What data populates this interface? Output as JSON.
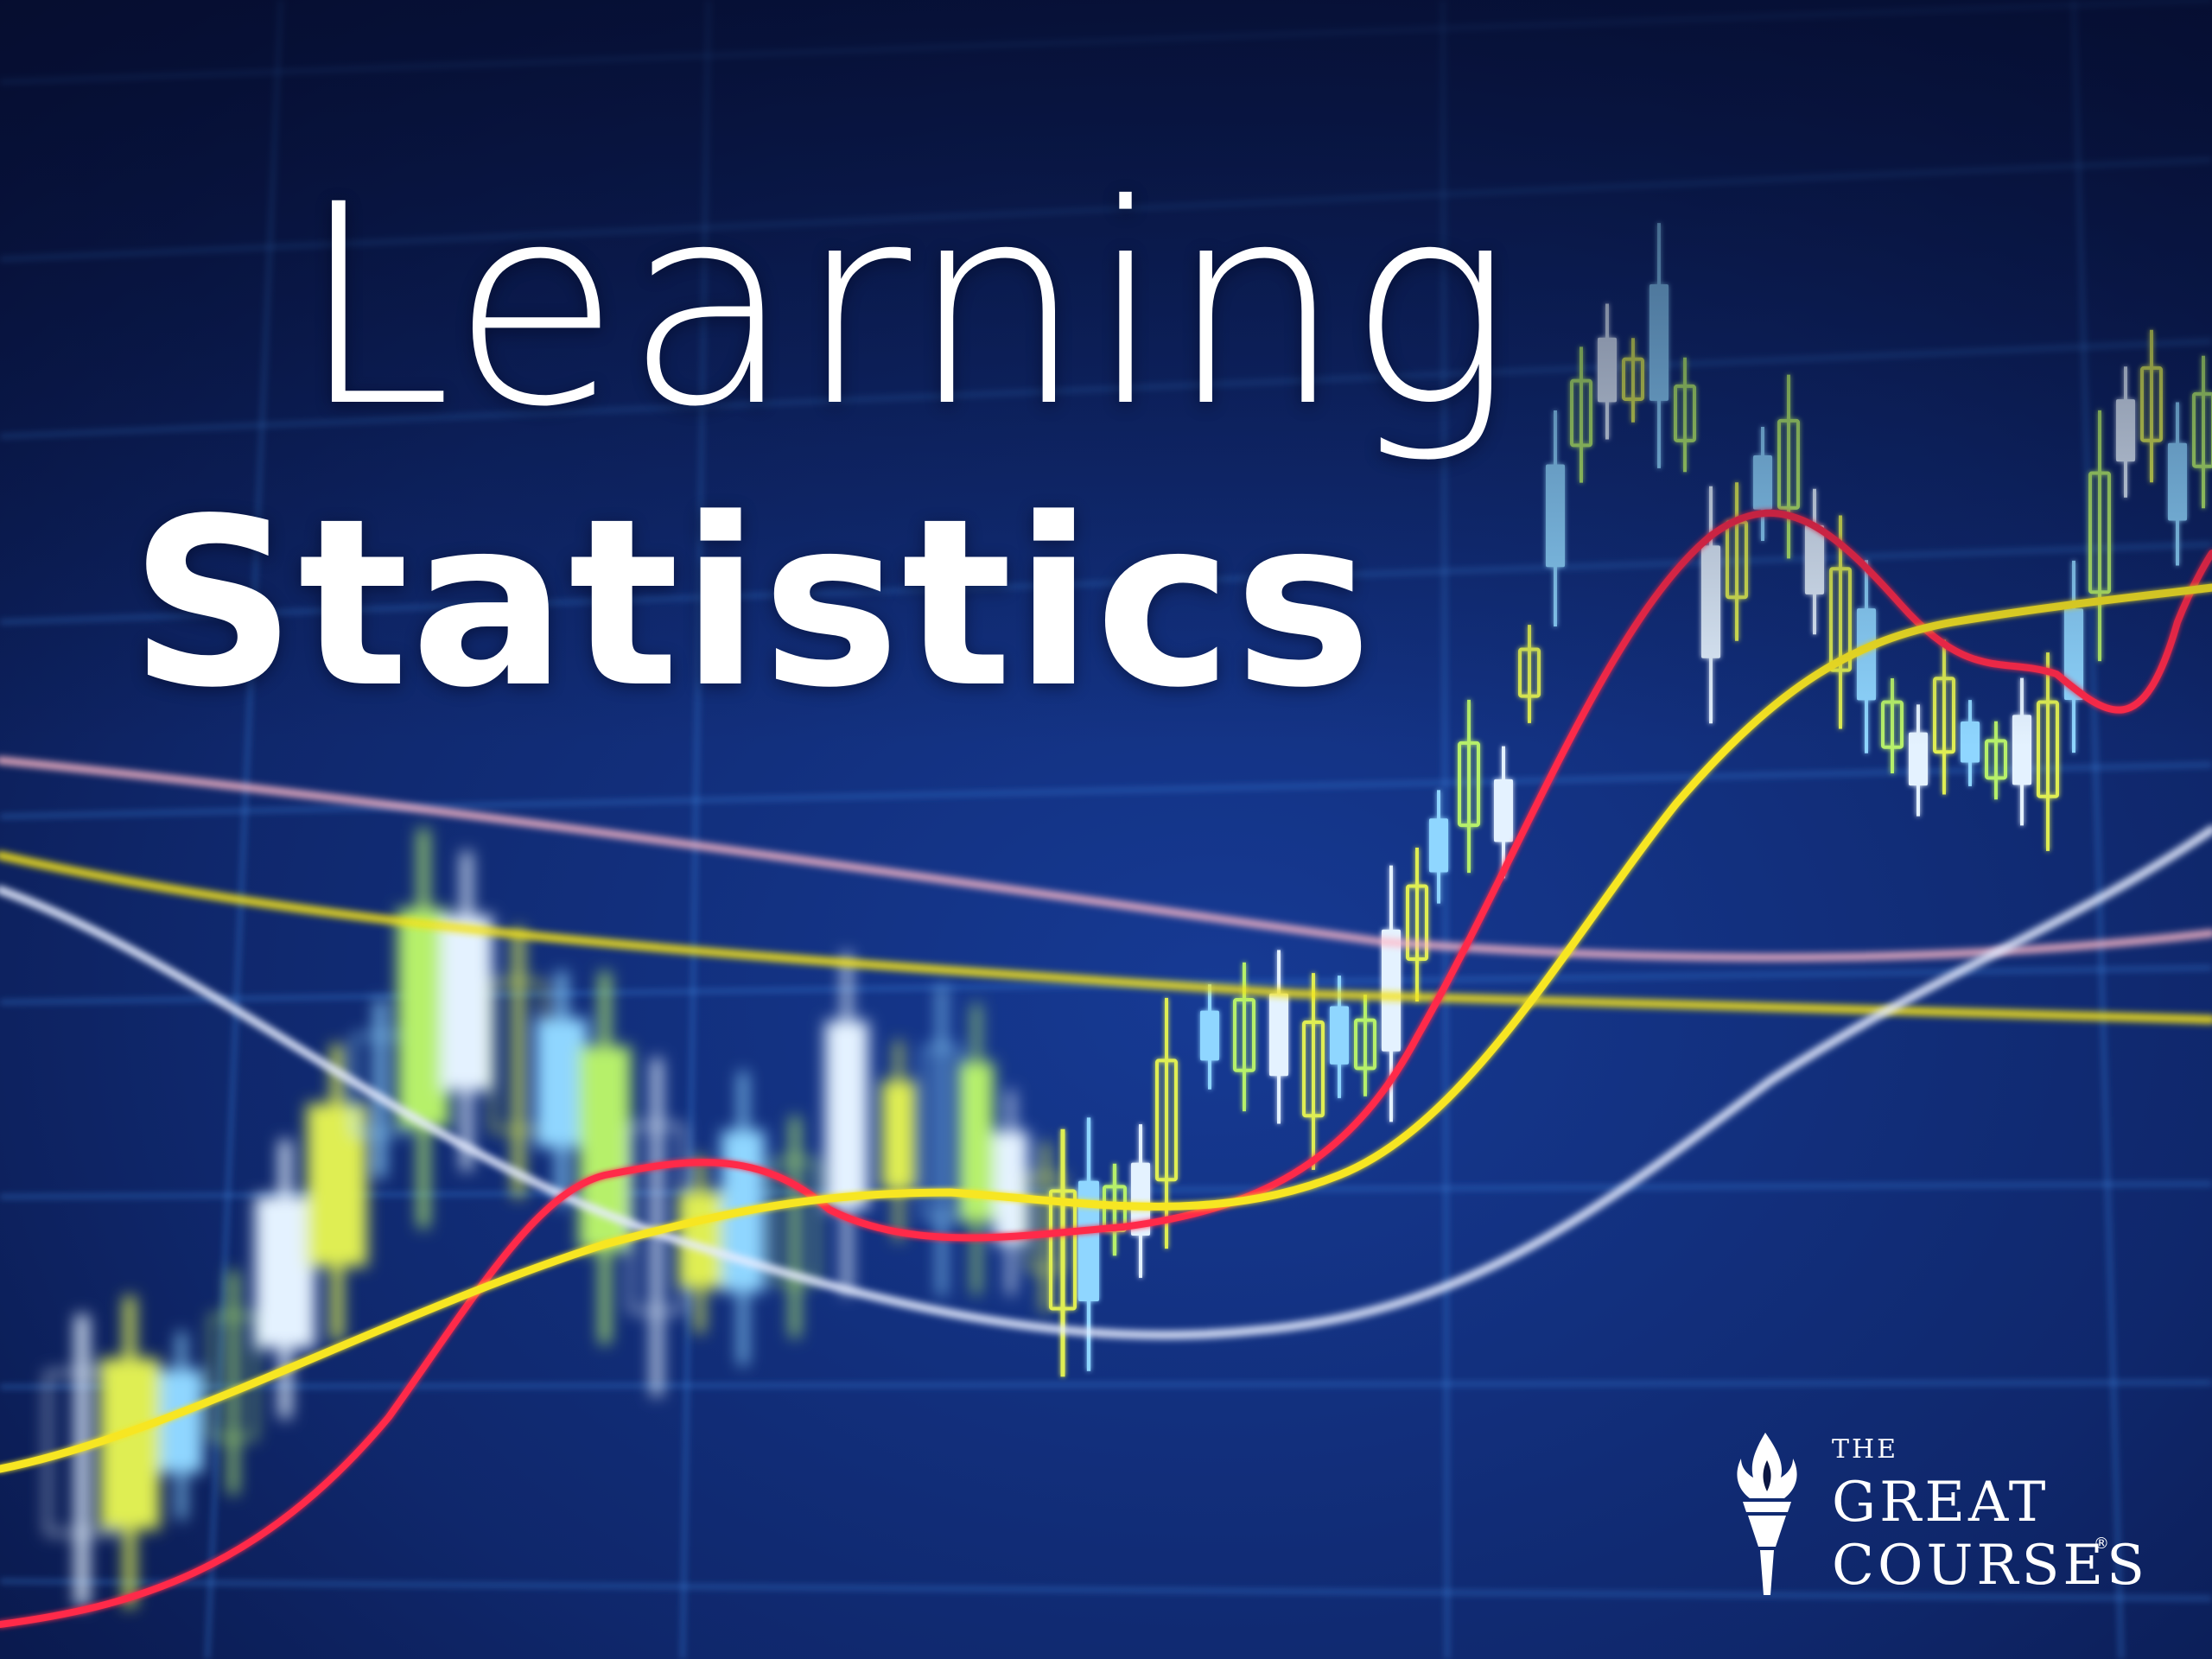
{
  "title": {
    "line1": "Learning",
    "line2": "Statistics"
  },
  "publisher": {
    "the": "THE",
    "great": "GREAT",
    "courses": "COURSES",
    "registered": "®"
  },
  "colors": {
    "background_dark": "#07113a",
    "background_mid": "#12307e",
    "grid_line": "#3d7fd8",
    "red_line": "#ff2a4a",
    "yellow_line": "#f4e21a",
    "white_line": "#e6ecff",
    "pink_line": "#ffb8c8",
    "candle_white": "#e4f2ff",
    "candle_yellow": "#dfee52",
    "candle_blue": "#8fd6ff",
    "candle_green": "#b6f06a"
  },
  "icons": {
    "logo": "torch-icon"
  }
}
